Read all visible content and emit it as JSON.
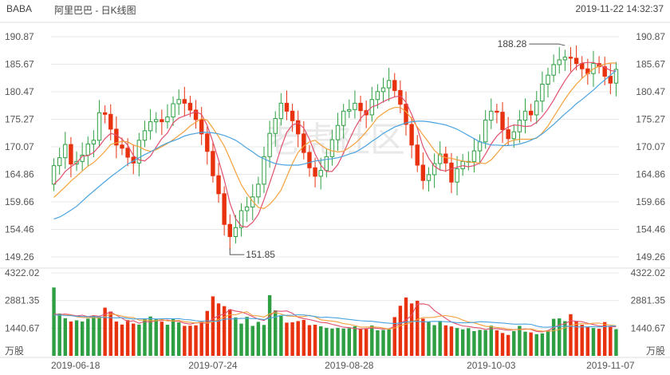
{
  "header": {
    "ticker": "BABA",
    "title": "阿里巴巴 - 日K线图",
    "timestamp": "2019-11-22 14:32:37"
  },
  "watermark": "老虎社区",
  "colors": {
    "up": "#2ea043",
    "down": "#e8320f",
    "ma5": "#e0506e",
    "ma10": "#f5a03c",
    "ma20": "#4aa3df",
    "grid": "#e8e8e8",
    "text": "#555555"
  },
  "chart_data": [
    {
      "type": "candlestick",
      "title": "阿里巴巴 - 日K线图",
      "yticks": [
        "190.87",
        "185.67",
        "180.47",
        "175.27",
        "170.07",
        "164.86",
        "159.66",
        "154.46",
        "149.26"
      ],
      "ylim": [
        149.26,
        190.87
      ],
      "xticks": [
        "2019-06-18",
        "2019-07-24",
        "2019-08-28",
        "2019-10-03",
        "2019-11-07"
      ],
      "annotations": [
        {
          "label": "188.28",
          "kind": "high"
        },
        {
          "label": "151.85",
          "kind": "low"
        }
      ],
      "close": [
        166.5,
        168.0,
        170.5,
        166.8,
        167.3,
        168.5,
        170.6,
        171.3,
        176.5,
        176.2,
        173.4,
        170.4,
        169.8,
        168.1,
        167.0,
        171.3,
        173.1,
        174.8,
        175.2,
        174.8,
        175.7,
        178.2,
        179.0,
        178.3,
        177.0,
        175.2,
        172.5,
        169.2,
        164.6,
        161.2,
        155.4,
        153.1,
        154.8,
        158.0,
        158.7,
        160.6,
        163.0,
        168.2,
        172.6,
        175.4,
        178.3,
        176.8,
        175.0,
        172.5,
        169.0,
        166.1,
        164.5,
        165.6,
        168.2,
        171.4,
        174.1,
        176.8,
        177.1,
        178.3,
        176.9,
        176.1,
        179.0,
        180.5,
        181.2,
        182.6,
        180.7,
        178.1,
        174.3,
        170.4,
        166.6,
        163.7,
        164.8,
        166.9,
        168.7,
        167.0,
        163.4,
        165.9,
        167.3,
        167.3,
        169.3,
        171.0,
        175.1,
        176.8,
        176.6,
        173.3,
        171.6,
        172.9,
        175.1,
        176.8,
        176.1,
        178.7,
        181.9,
        183.6,
        185.6,
        186.5,
        187.0,
        186.8,
        185.8,
        184.8,
        183.9,
        185.8,
        185.2,
        183.4,
        182.1,
        184.7
      ],
      "ma": [
        {
          "name": "MA5",
          "values": [
            163.0,
            164.0,
            165.4,
            166.3,
            167.0,
            168.3,
            168.4,
            169.0,
            170.2,
            171.6,
            172.6,
            172.3,
            171.5,
            170.4,
            168.4,
            167.6,
            167.4,
            168.3,
            170.0,
            171.6,
            172.7,
            174.6,
            175.5,
            175.9,
            176.3,
            176.7,
            176.2,
            174.1,
            171.0,
            167.6,
            163.8,
            159.4,
            156.5,
            155.1,
            154.9,
            155.8,
            157.3,
            160.1,
            163.2,
            166.4,
            169.9,
            172.8,
            174.2,
            174.6,
            173.6,
            171.5,
            168.7,
            166.6,
            165.4,
            165.4,
            166.7,
            168.9,
            171.3,
            173.6,
            175.4,
            176.6,
            177.6,
            178.0,
            178.6,
            179.1,
            179.5,
            179.7,
            178.5,
            176.2,
            173.6,
            170.1,
            167.9,
            166.4,
            165.7,
            165.5,
            165.9,
            166.2,
            166.5,
            166.3,
            166.5,
            167.0,
            168.7,
            170.6,
            172.1,
            173.1,
            173.8,
            174.2,
            174.1,
            173.9,
            174.0,
            174.7,
            175.8,
            177.2,
            178.9,
            180.8,
            182.6,
            184.1,
            185.2,
            185.9,
            186.0,
            186.0,
            185.6,
            185.1,
            184.5,
            184.3
          ]
        },
        {
          "name": "MA10",
          "values": [
            160.5,
            161.5,
            162.5,
            163.6,
            164.5,
            165.5,
            166.4,
            167.1,
            168.1,
            169.2,
            170.5,
            170.8,
            171.1,
            171.0,
            170.4,
            170.1,
            169.5,
            169.2,
            169.5,
            170.1,
            170.7,
            171.4,
            172.2,
            173.0,
            174.0,
            174.7,
            175.4,
            175.1,
            173.6,
            172.0,
            170.2,
            167.8,
            165.3,
            162.9,
            161.2,
            159.8,
            158.6,
            158.4,
            159.2,
            160.4,
            161.9,
            164.4,
            166.9,
            169.0,
            170.2,
            171.0,
            171.3,
            170.4,
            169.7,
            169.3,
            169.1,
            169.2,
            169.9,
            170.7,
            171.7,
            172.9,
            174.2,
            175.6,
            176.4,
            177.1,
            177.5,
            177.5,
            176.7,
            175.4,
            173.8,
            172.3,
            170.9,
            169.4,
            168.4,
            168.0,
            167.9,
            167.6,
            167.4,
            167.2,
            167.1,
            167.0,
            166.9,
            167.6,
            168.8,
            170.1,
            171.0,
            171.3,
            171.5,
            171.5,
            171.5,
            171.7,
            172.7,
            174.0,
            175.7,
            177.4,
            179.1,
            180.6,
            181.9,
            183.0,
            183.9,
            184.8,
            185.3,
            185.7,
            185.9,
            185.9
          ]
        },
        {
          "name": "MA20",
          "values": [
            156.4,
            156.8,
            157.4,
            158.1,
            158.8,
            159.8,
            160.8,
            161.7,
            162.6,
            163.5,
            164.4,
            165.2,
            166.0,
            166.8,
            167.4,
            168.0,
            168.6,
            169.1,
            169.7,
            170.3,
            170.8,
            171.2,
            171.6,
            172.1,
            172.4,
            172.6,
            172.8,
            172.8,
            172.7,
            172.5,
            172.2,
            171.8,
            171.3,
            170.6,
            169.8,
            169.1,
            168.3,
            167.8,
            167.3,
            166.9,
            166.7,
            166.6,
            166.6,
            166.6,
            166.8,
            167.1,
            167.4,
            167.5,
            167.7,
            167.8,
            168.0,
            168.3,
            168.7,
            169.0,
            169.6,
            170.3,
            171.1,
            171.8,
            172.6,
            173.2,
            173.8,
            174.2,
            174.6,
            174.8,
            174.9,
            174.9,
            174.8,
            174.6,
            174.4,
            174.2,
            173.8,
            173.4,
            172.8,
            172.2,
            171.6,
            171.0,
            170.7,
            170.4,
            170.4,
            170.3,
            170.3,
            170.4,
            170.6,
            170.9,
            171.3,
            171.8,
            172.5,
            173.4,
            174.3,
            175.3,
            176.3,
            177.2,
            178.2,
            179.0,
            179.9,
            180.8,
            181.8,
            182.7,
            183.6,
            184.5
          ]
        }
      ]
    },
    {
      "type": "bar",
      "title": "",
      "unit_label": "万股",
      "yticks": [
        "4322.02",
        "2881.35",
        "1440.67"
      ],
      "ylim": [
        0,
        4322.02
      ],
      "volume": [
        3560,
        2200,
        1960,
        1790,
        1850,
        1790,
        1940,
        2080,
        2040,
        2510,
        2310,
        1790,
        1630,
        1860,
        1680,
        1630,
        1950,
        2050,
        1910,
        1780,
        1620,
        1910,
        1740,
        1560,
        1570,
        1590,
        1770,
        2340,
        3100,
        2730,
        2590,
        2420,
        2000,
        1680,
        2030,
        1560,
        1770,
        1610,
        3160,
        2370,
        2080,
        1730,
        1750,
        1810,
        1870,
        1600,
        1620,
        1540,
        1460,
        1420,
        1460,
        1420,
        1440,
        1540,
        1400,
        1400,
        1580,
        1330,
        1350,
        1370,
        2020,
        2610,
        3040,
        2730,
        2870,
        1940,
        1780,
        1600,
        1820,
        1590,
        1530,
        1450,
        1380,
        1440,
        1290,
        1350,
        1340,
        1570,
        1330,
        1190,
        1090,
        1290,
        1560,
        1260,
        1220,
        1130,
        1170,
        1320,
        1930,
        1950,
        1810,
        2170,
        1800,
        1620,
        1520,
        1450,
        1410,
        1760,
        1510,
        1390
      ],
      "ma": [
        {
          "name": "MA5",
          "values": [
            2180,
            2150,
            2180,
            2140,
            2080,
            2120,
            2040,
            2100,
            2060,
            2160,
            2290,
            2110,
            1960,
            1780,
            1830,
            1700,
            1790,
            1760,
            1830,
            1840,
            1860,
            1810,
            1800,
            1700,
            1650,
            1720,
            1720,
            1700,
            1930,
            2100,
            2170,
            2420,
            2330,
            2290,
            2180,
            2040,
            1910,
            1840,
            2070,
            2340,
            2320,
            2340,
            2220,
            2010,
            1940,
            1890,
            1820,
            1740,
            1720,
            1640,
            1570,
            1490,
            1470,
            1420,
            1400,
            1420,
            1460,
            1430,
            1400,
            1410,
            1540,
            1680,
            1870,
            2110,
            2700,
            2710,
            2650,
            2360,
            2160,
            1950,
            1760,
            1650,
            1560,
            1530,
            1480,
            1450,
            1370,
            1420,
            1410,
            1380,
            1330,
            1350,
            1380,
            1400,
            1380,
            1270,
            1250,
            1320,
            1460,
            1610,
            1680,
            1830,
            1800,
            1780,
            1700,
            1630,
            1560,
            1540,
            1520,
            1520
          ]
        },
        {
          "name": "MA10",
          "values": [
            2110,
            2130,
            2120,
            2120,
            2040,
            2000,
            1990,
            1990,
            1980,
            2040,
            2180,
            2130,
            2070,
            2010,
            2000,
            1860,
            1860,
            1840,
            1830,
            1890,
            1820,
            1820,
            1850,
            1780,
            1750,
            1710,
            1770,
            1710,
            1780,
            1900,
            2020,
            2140,
            2140,
            2240,
            2300,
            2100,
            2080,
            2020,
            2190,
            2250,
            2180,
            2080,
            2060,
            2040,
            2050,
            2110,
            2030,
            1880,
            1840,
            1810,
            1760,
            1680,
            1640,
            1580,
            1500,
            1500,
            1510,
            1490,
            1450,
            1390,
            1450,
            1570,
            1650,
            1760,
            1900,
            2000,
            1990,
            2010,
            2070,
            2100,
            2050,
            1990,
            1860,
            1760,
            1720,
            1630,
            1540,
            1520,
            1480,
            1450,
            1390,
            1360,
            1370,
            1380,
            1400,
            1330,
            1290,
            1280,
            1310,
            1370,
            1460,
            1580,
            1650,
            1680,
            1660,
            1700,
            1710,
            1640,
            1600,
            1570
          ]
        },
        {
          "name": "MA20",
          "values": [
            2120,
            2130,
            2100,
            2090,
            2060,
            2050,
            2040,
            2030,
            2030,
            2000,
            1990,
            1980,
            1990,
            1950,
            1920,
            1930,
            1930,
            1940,
            1920,
            1930,
            1940,
            1930,
            1940,
            1890,
            1880,
            1830,
            1800,
            1830,
            1800,
            1810,
            1910,
            1920,
            1930,
            1950,
            1950,
            1940,
            1930,
            1890,
            1960,
            2030,
            2110,
            2110,
            2120,
            2140,
            2130,
            2090,
            2050,
            2000,
            2020,
            1990,
            1970,
            1930,
            1900,
            1860,
            1830,
            1810,
            1800,
            1760,
            1730,
            1700,
            1680,
            1710,
            1760,
            1790,
            1800,
            1770,
            1780,
            1800,
            1790,
            1780,
            1760,
            1730,
            1720,
            1730,
            1740,
            1780,
            1770,
            1750,
            1730,
            1710,
            1680,
            1650,
            1650,
            1660,
            1640,
            1550,
            1500,
            1490,
            1510,
            1540,
            1540,
            1540,
            1510,
            1510,
            1510,
            1520,
            1510,
            1520,
            1550,
            1560
          ]
        }
      ]
    }
  ]
}
